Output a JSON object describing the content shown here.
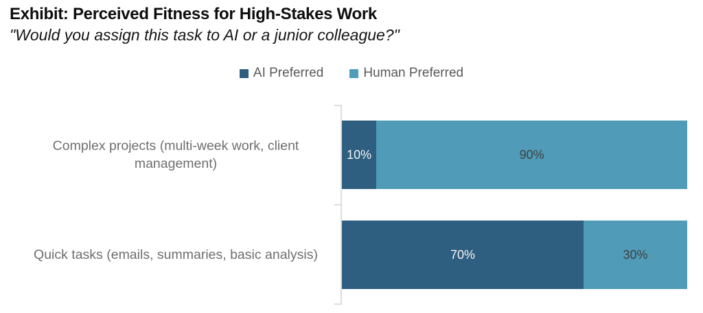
{
  "header": {
    "title": "Exhibit: Perceived Fitness for High-Stakes Work",
    "subtitle": "\"Would you assign this task to AI or a junior colleague?\""
  },
  "legend": {
    "items": [
      {
        "label": "AI Preferred",
        "color": "#2E5F80"
      },
      {
        "label": "Human Preferred",
        "color": "#4F9BB8"
      }
    ]
  },
  "colors": {
    "ai_segment": "#2E5F80",
    "human_segment": "#4F9BB8",
    "axis": "#DCDCDC",
    "category_text": "#6E6E6E",
    "legend_text": "#595959",
    "label_on_dark": "#F5F5F5",
    "label_on_light": "#404040"
  },
  "chart_data": {
    "type": "bar",
    "orientation": "horizontal",
    "stacked": true,
    "title": "Exhibit: Perceived Fitness for High-Stakes Work",
    "subtitle": "\"Would you assign this task to AI or a junior colleague?\"",
    "categories": [
      "Complex projects (multi-week work, client management)",
      "Quick tasks (emails, summaries, basic analysis)"
    ],
    "series": [
      {
        "name": "AI Preferred",
        "values": [
          10,
          70
        ],
        "color": "#2E5F80",
        "value_label_color": "#F5F5F5"
      },
      {
        "name": "Human Preferred",
        "values": [
          90,
          30
        ],
        "color": "#4F9BB8",
        "value_label_color": "#404040"
      }
    ],
    "value_labels": [
      [
        "10%",
        "90%"
      ],
      [
        "70%",
        "30%"
      ]
    ],
    "xlim": [
      0,
      100
    ],
    "legend_position": "top-center",
    "grid": false
  }
}
